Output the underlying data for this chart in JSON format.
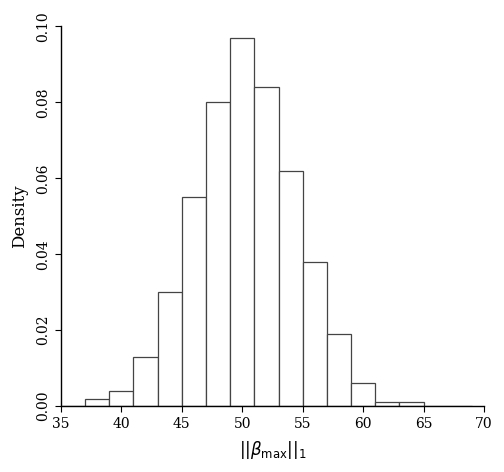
{
  "bin_edges": [
    35,
    37,
    39,
    41,
    43,
    45,
    47,
    49,
    51,
    53,
    55,
    57,
    59,
    61,
    63,
    65,
    67,
    69
  ],
  "densities": [
    0.0,
    0.002,
    0.004,
    0.013,
    0.03,
    0.055,
    0.08,
    0.097,
    0.084,
    0.062,
    0.038,
    0.019,
    0.006,
    0.001,
    0.001,
    0.0,
    0.0
  ],
  "xlim": [
    35,
    70
  ],
  "ylim": [
    0,
    0.1
  ],
  "xticks": [
    35,
    40,
    45,
    50,
    55,
    60,
    65,
    70
  ],
  "yticks": [
    0.0,
    0.02,
    0.04,
    0.06,
    0.08,
    0.1
  ],
  "ylabel": "Density",
  "bar_facecolor": "#ffffff",
  "bar_edgecolor": "#444444",
  "background_color": "#ffffff",
  "figsize": [
    5.04,
    4.72
  ],
  "dpi": 100
}
